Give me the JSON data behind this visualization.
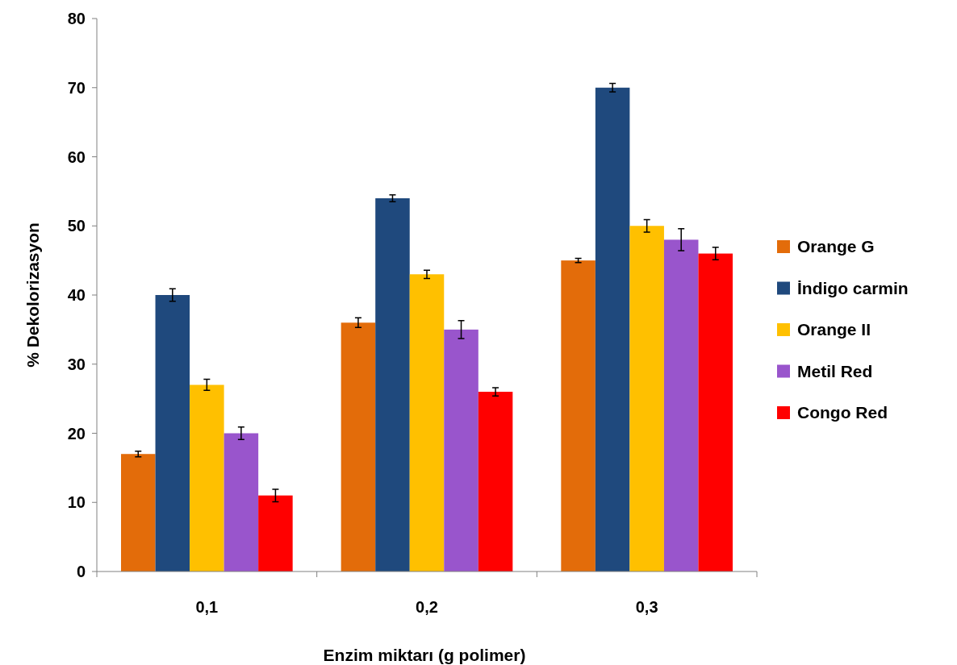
{
  "chart_data": {
    "type": "bar",
    "xlabel": "Enzim miktarı (g polimer)",
    "ylabel": "% Dekolorizasyon",
    "categories": [
      "0,1",
      "0,2",
      "0,3"
    ],
    "series": [
      {
        "name": "Orange G",
        "color": "#e36c0a",
        "values": [
          17,
          36,
          45
        ],
        "errors": [
          0.4,
          0.7,
          0.3
        ]
      },
      {
        "name": "İndigo carmin",
        "color": "#1f497d",
        "values": [
          40,
          54,
          70
        ],
        "errors": [
          0.9,
          0.5,
          0.6
        ]
      },
      {
        "name": "Orange II",
        "color": "#ffc000",
        "values": [
          27,
          43,
          50
        ],
        "errors": [
          0.8,
          0.6,
          0.9
        ]
      },
      {
        "name": "Metil Red",
        "color": "#9955cc",
        "values": [
          20,
          35,
          48
        ],
        "errors": [
          0.9,
          1.3,
          1.6
        ]
      },
      {
        "name": "Congo Red",
        "color": "#ff0000",
        "values": [
          11,
          26,
          46
        ],
        "errors": [
          0.9,
          0.6,
          0.9
        ]
      }
    ],
    "ylim": [
      0,
      80
    ],
    "yticks": [
      0,
      10,
      20,
      30,
      40,
      50,
      60,
      70,
      80
    ],
    "grid": false,
    "legend": "right"
  }
}
